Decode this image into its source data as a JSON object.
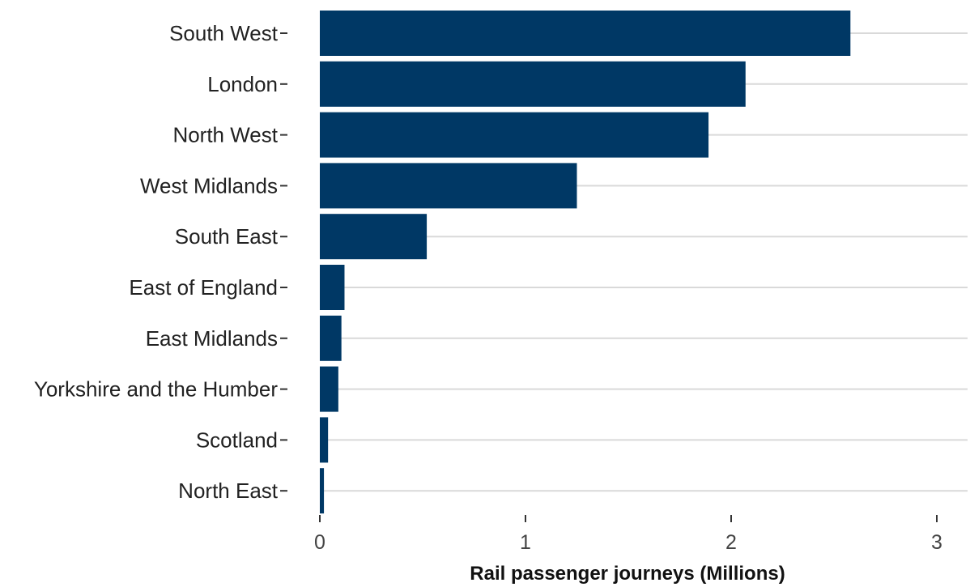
{
  "chart_data": {
    "type": "bar",
    "orientation": "horizontal",
    "categories": [
      "South West",
      "London",
      "North West",
      "West Midlands",
      "South East",
      "East of England",
      "East Midlands",
      "Yorkshire and the Humber",
      "Scotland",
      "North East"
    ],
    "values": [
      2.58,
      2.07,
      1.89,
      1.25,
      0.52,
      0.12,
      0.105,
      0.09,
      0.04,
      0.02
    ],
    "xlabel": "Rail passenger journeys (Millions)",
    "ylabel": "",
    "xlim": [
      0,
      3.15
    ],
    "xticks": [
      0,
      1,
      2,
      3
    ],
    "grid": "horizontal",
    "bar_color": "#003865",
    "grid_color": "#d9d9d9"
  }
}
